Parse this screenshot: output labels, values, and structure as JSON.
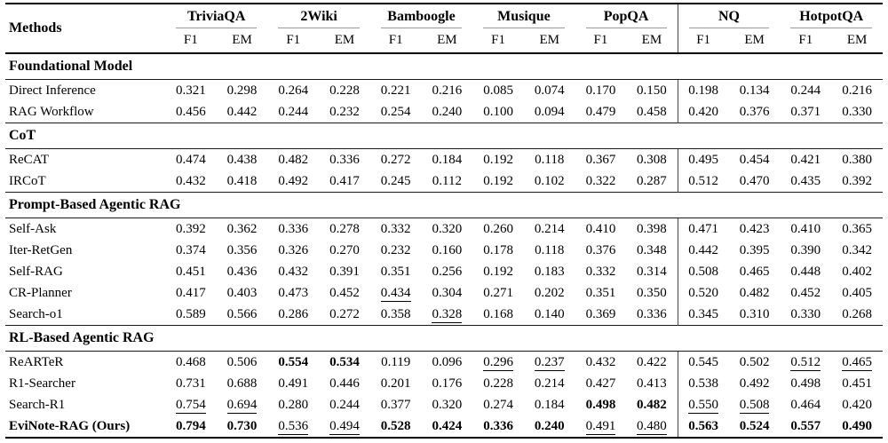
{
  "table": {
    "methods_label": "Methods",
    "metric_labels": [
      "F1",
      "EM"
    ],
    "groups": [
      {
        "name": "TriviaQA"
      },
      {
        "name": "2Wiki"
      },
      {
        "name": "Bamboogle"
      },
      {
        "name": "Musique"
      },
      {
        "name": "PopQA"
      },
      {
        "name": "NQ"
      },
      {
        "name": "HotpotQA"
      }
    ],
    "colors": {
      "text": "#000000",
      "background": "#ffffff",
      "group_rule_gray": "#9a9a9a",
      "vertical_divider": "#4a4a4a"
    },
    "style_legend": {
      "bold": "best result",
      "underline": "second-best result"
    },
    "sections": [
      {
        "title": "Foundational Model",
        "rows": [
          {
            "label": "Direct Inference",
            "label_bold": false,
            "values": [
              "0.321",
              "0.298",
              "0.264",
              "0.228",
              "0.221",
              "0.216",
              "0.085",
              "0.074",
              "0.170",
              "0.150",
              "0.198",
              "0.134",
              "0.244",
              "0.216"
            ],
            "bold": [],
            "underline": []
          },
          {
            "label": "RAG Workflow",
            "label_bold": false,
            "values": [
              "0.456",
              "0.442",
              "0.244",
              "0.232",
              "0.254",
              "0.240",
              "0.100",
              "0.094",
              "0.479",
              "0.458",
              "0.420",
              "0.376",
              "0.371",
              "0.330"
            ],
            "bold": [],
            "underline": []
          }
        ]
      },
      {
        "title": "CoT",
        "rows": [
          {
            "label": "ReCAT",
            "label_bold": false,
            "values": [
              "0.474",
              "0.438",
              "0.482",
              "0.336",
              "0.272",
              "0.184",
              "0.192",
              "0.118",
              "0.367",
              "0.308",
              "0.495",
              "0.454",
              "0.421",
              "0.380"
            ],
            "bold": [],
            "underline": []
          },
          {
            "label": "IRCoT",
            "label_bold": false,
            "values": [
              "0.432",
              "0.418",
              "0.492",
              "0.417",
              "0.245",
              "0.112",
              "0.192",
              "0.102",
              "0.322",
              "0.287",
              "0.512",
              "0.470",
              "0.435",
              "0.392"
            ],
            "bold": [],
            "underline": []
          }
        ]
      },
      {
        "title": "Prompt-Based Agentic RAG",
        "rows": [
          {
            "label": "Self-Ask",
            "label_bold": false,
            "values": [
              "0.392",
              "0.362",
              "0.336",
              "0.278",
              "0.332",
              "0.320",
              "0.260",
              "0.214",
              "0.410",
              "0.398",
              "0.471",
              "0.423",
              "0.410",
              "0.365"
            ],
            "bold": [],
            "underline": []
          },
          {
            "label": "Iter-RetGen",
            "label_bold": false,
            "values": [
              "0.374",
              "0.356",
              "0.326",
              "0.270",
              "0.232",
              "0.160",
              "0.178",
              "0.118",
              "0.376",
              "0.348",
              "0.442",
              "0.395",
              "0.390",
              "0.342"
            ],
            "bold": [],
            "underline": []
          },
          {
            "label": "Self-RAG",
            "label_bold": false,
            "values": [
              "0.451",
              "0.436",
              "0.432",
              "0.391",
              "0.351",
              "0.256",
              "0.192",
              "0.183",
              "0.332",
              "0.314",
              "0.508",
              "0.465",
              "0.448",
              "0.402"
            ],
            "bold": [],
            "underline": []
          },
          {
            "label": "CR-Planner",
            "label_bold": false,
            "values": [
              "0.417",
              "0.403",
              "0.473",
              "0.452",
              "0.434",
              "0.304",
              "0.271",
              "0.202",
              "0.351",
              "0.350",
              "0.520",
              "0.482",
              "0.452",
              "0.405"
            ],
            "bold": [],
            "underline": [
              4
            ]
          },
          {
            "label": "Search-o1",
            "label_bold": false,
            "values": [
              "0.589",
              "0.566",
              "0.286",
              "0.272",
              "0.358",
              "0.328",
              "0.168",
              "0.140",
              "0.369",
              "0.336",
              "0.345",
              "0.310",
              "0.330",
              "0.268"
            ],
            "bold": [],
            "underline": [
              5
            ]
          }
        ]
      },
      {
        "title": "RL-Based Agentic RAG",
        "rows": [
          {
            "label": "ReARTeR",
            "label_bold": false,
            "values": [
              "0.468",
              "0.506",
              "0.554",
              "0.534",
              "0.119",
              "0.096",
              "0.296",
              "0.237",
              "0.432",
              "0.422",
              "0.545",
              "0.502",
              "0.512",
              "0.465"
            ],
            "bold": [
              2,
              3
            ],
            "underline": [
              6,
              7,
              12,
              13
            ]
          },
          {
            "label": "R1-Searcher",
            "label_bold": false,
            "values": [
              "0.731",
              "0.688",
              "0.491",
              "0.446",
              "0.201",
              "0.176",
              "0.228",
              "0.214",
              "0.427",
              "0.413",
              "0.538",
              "0.492",
              "0.498",
              "0.451"
            ],
            "bold": [],
            "underline": []
          },
          {
            "label": "Search-R1",
            "label_bold": false,
            "values": [
              "0.754",
              "0.694",
              "0.280",
              "0.244",
              "0.377",
              "0.320",
              "0.274",
              "0.184",
              "0.498",
              "0.482",
              "0.550",
              "0.508",
              "0.464",
              "0.420"
            ],
            "bold": [
              8,
              9
            ],
            "underline": [
              0,
              1,
              10,
              11
            ]
          },
          {
            "label": "EviNote-RAG (Ours)",
            "label_bold": true,
            "values": [
              "0.794",
              "0.730",
              "0.536",
              "0.494",
              "0.528",
              "0.424",
              "0.336",
              "0.240",
              "0.491",
              "0.480",
              "0.563",
              "0.524",
              "0.557",
              "0.490"
            ],
            "bold": [
              0,
              1,
              4,
              5,
              6,
              7,
              10,
              11,
              12,
              13
            ],
            "underline": [
              2,
              3,
              8,
              9
            ]
          }
        ]
      }
    ]
  }
}
